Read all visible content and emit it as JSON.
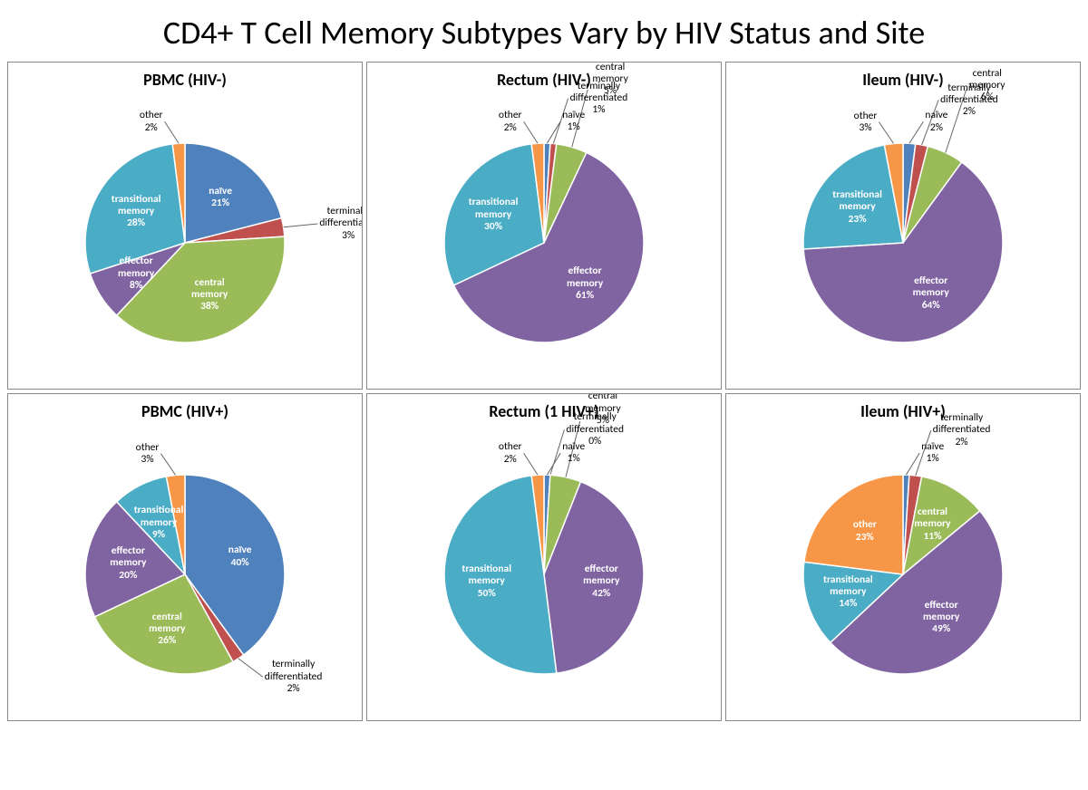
{
  "title": "CD4+ T Cell Memory Subtypes Vary by HIV Status and Site",
  "title_fontsize": 36,
  "background_color": "#ffffff",
  "panel_border_color": "#888888",
  "label_fontsize": 11.5,
  "panel_title_fontsize": 18,
  "colors": {
    "naive": "#4f81bd",
    "terminally_differentiated": "#c0504d",
    "central_memory": "#9bbb59",
    "effector_memory": "#8064a2",
    "transitional_memory": "#4bacc6",
    "other": "#f79646"
  },
  "slice_order": [
    "naive",
    "terminally_differentiated",
    "central_memory",
    "effector_memory",
    "transitional_memory",
    "other"
  ],
  "slice_labels": {
    "naive": "naïve",
    "terminally_differentiated": "terminally\ndifferentiated",
    "central_memory": "central\nmemory",
    "effector_memory": "effector\nmemory",
    "transitional_memory": "transitional\nmemory",
    "other": "other"
  },
  "pie_radius": 110,
  "start_angle_deg": -90,
  "charts": [
    {
      "title": "PBMC (HIV-)",
      "type": "pie",
      "data": {
        "naive": 21,
        "terminally_differentiated": 3,
        "central_memory": 38,
        "effector_memory": 8,
        "transitional_memory": 28,
        "other": 2
      },
      "callout_threshold": 6
    },
    {
      "title": "Rectum (HIV-)",
      "type": "pie",
      "data": {
        "naive": 1,
        "terminally_differentiated": 1,
        "central_memory": 5,
        "effector_memory": 61,
        "transitional_memory": 30,
        "other": 2
      },
      "callout_threshold": 6
    },
    {
      "title": "Ileum (HIV-)",
      "type": "pie",
      "data": {
        "naive": 2,
        "terminally_differentiated": 2,
        "central_memory": 6,
        "effector_memory": 64,
        "transitional_memory": 23,
        "other": 3
      },
      "callout_threshold": 7
    },
    {
      "title": "PBMC (HIV+)",
      "type": "pie",
      "data": {
        "naive": 40,
        "terminally_differentiated": 2,
        "central_memory": 26,
        "effector_memory": 20,
        "transitional_memory": 9,
        "other": 3
      },
      "callout_threshold": 6
    },
    {
      "title": "Rectum (1 HIV+)",
      "type": "pie",
      "data": {
        "naive": 1,
        "terminally_differentiated": 0,
        "central_memory": 5,
        "effector_memory": 42,
        "transitional_memory": 50,
        "other": 2
      },
      "callout_threshold": 6
    },
    {
      "title": "Ileum (HIV+)",
      "type": "pie",
      "data": {
        "naive": 1,
        "terminally_differentiated": 2,
        "central_memory": 11,
        "effector_memory": 49,
        "transitional_memory": 14,
        "other": 23
      },
      "callout_threshold": 3
    }
  ]
}
